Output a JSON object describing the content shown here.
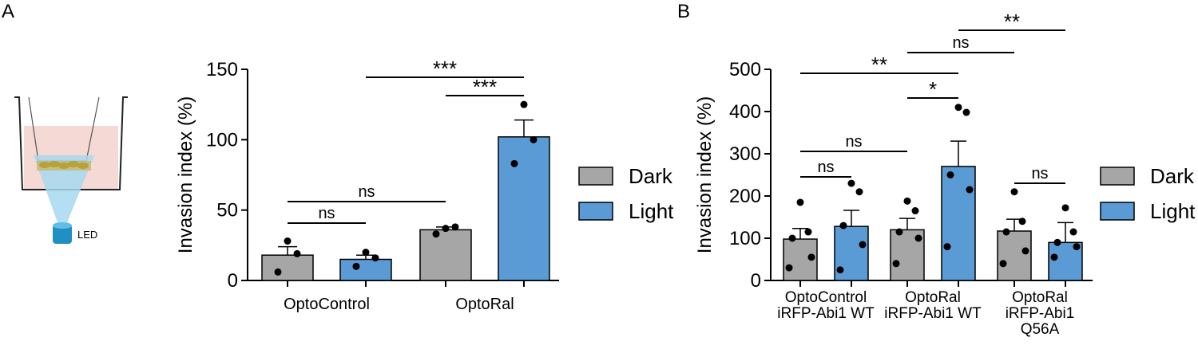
{
  "colors": {
    "dark": "#a6a6a6",
    "light": "#5b9bd5",
    "axis": "#000000",
    "beaker_fill": "#f4d9d4",
    "beam": "#a7d8f0",
    "led": "#1f8fc4"
  },
  "panels": {
    "a_label": "A",
    "b_label": "B",
    "led_label": "LED"
  },
  "chart_data": [
    {
      "type": "bar",
      "panel": "A",
      "title": "",
      "xlabel": "",
      "ylabel": "Invasion index (%)",
      "ylim": [
        0,
        150
      ],
      "yticks": [
        0,
        50,
        100,
        150
      ],
      "categories": [
        "OptoControl",
        "OptoRal"
      ],
      "grid": false,
      "legend_position": "right",
      "series": [
        {
          "name": "Dark",
          "color": "#a6a6a6",
          "values": [
            18,
            36
          ],
          "sem": [
            6,
            2
          ],
          "points": [
            [
              28,
              19,
              6
            ],
            [
              37,
              38,
              33
            ]
          ]
        },
        {
          "name": "Light",
          "color": "#5b9bd5",
          "values": [
            15,
            102
          ],
          "sem": [
            3,
            12
          ],
          "points": [
            [
              20,
              16,
              10
            ],
            [
              125,
              100,
              83
            ]
          ]
        }
      ],
      "significance": [
        {
          "from": "OptoControl-Dark",
          "to": "OptoControl-Light",
          "label": "ns"
        },
        {
          "from": "OptoControl-Dark",
          "to": "OptoRal-Dark",
          "label": "ns"
        },
        {
          "from": "OptoControl-Light",
          "to": "OptoRal-Light",
          "label": "***"
        },
        {
          "from": "OptoRal-Dark",
          "to": "OptoRal-Light",
          "label": "***"
        }
      ]
    },
    {
      "type": "bar",
      "panel": "B",
      "title": "",
      "xlabel": "",
      "ylabel": "Invasion index (%)",
      "ylim": [
        0,
        500
      ],
      "yticks": [
        0,
        100,
        200,
        300,
        400,
        500
      ],
      "categories": [
        [
          "OptoControl",
          "iRFP-Abi1 WT"
        ],
        [
          "OptoRal",
          "iRFP-Abi1 WT"
        ],
        [
          "OptoRal",
          "iRFP-Abi1",
          "Q56A"
        ]
      ],
      "grid": false,
      "legend_position": "right",
      "series": [
        {
          "name": "Dark",
          "color": "#a6a6a6",
          "values": [
            98,
            120,
            117
          ],
          "sem": [
            25,
            27,
            28
          ],
          "points": [
            [
              185,
              115,
              100,
              55,
              30
            ],
            [
              188,
              165,
              115,
              100,
              40
            ],
            [
              210,
              140,
              115,
              70,
              40
            ]
          ]
        },
        {
          "name": "Light",
          "color": "#5b9bd5",
          "values": [
            128,
            270,
            90
          ],
          "sem": [
            38,
            60,
            47
          ],
          "points": [
            [
              230,
              210,
              130,
              85,
              25
            ],
            [
              410,
              398,
              250,
              215,
              80
            ],
            [
              172,
              115,
              90,
              80,
              55
            ]
          ]
        }
      ],
      "significance": [
        {
          "from": "OptoControl-Dark",
          "to": "OptoControl-Light",
          "label": "ns"
        },
        {
          "from": "OptoControl-Dark",
          "to": "OptoRal-Dark",
          "label": "ns"
        },
        {
          "from": "OptoControl-Dark",
          "to": "OptoRal-Light",
          "label": "**"
        },
        {
          "from": "OptoRal-Dark",
          "to": "OptoRal-Light",
          "label": "*"
        },
        {
          "from": "OptoRal-Dark",
          "to": "Q56A-Dark",
          "label": "ns"
        },
        {
          "from": "OptoRal-Light",
          "to": "Q56A-Light",
          "label": "**"
        },
        {
          "from": "Q56A-Dark",
          "to": "Q56A-Light",
          "label": "ns"
        }
      ]
    }
  ]
}
